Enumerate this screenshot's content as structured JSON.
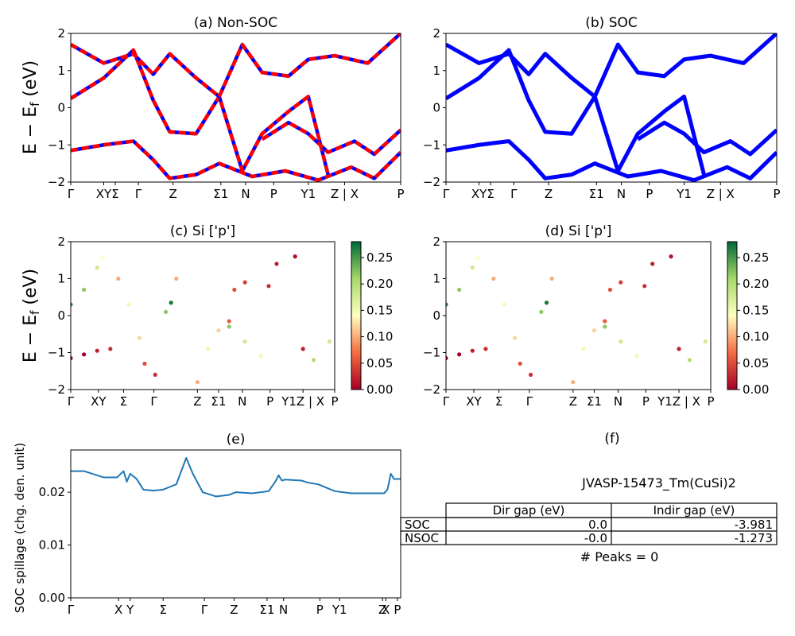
{
  "figure": {
    "ylabel_upper": "E − E",
    "ylabel_sub": "f",
    "ylabel_unit": " (eV)"
  },
  "chart_data": [
    {
      "id": "a",
      "type": "line",
      "title": "(a) Non-SOC",
      "ylim": [
        -2,
        2
      ],
      "yticks": [
        "2",
        "1",
        "0",
        "−1",
        "−2"
      ],
      "xticks": [
        "Γ",
        "XY",
        "Σ",
        "Γ",
        "Z",
        "Σ1",
        "N",
        "P",
        "Y1",
        "Z | X",
        "P"
      ],
      "series": [
        {
          "name": "band1",
          "x": [
            0,
            0.1,
            0.19,
            0.25,
            0.3,
            0.38,
            0.45,
            0.55,
            0.65,
            0.75,
            0.85,
            0.92,
            1.0
          ],
          "y": [
            -1.15,
            -1.0,
            -0.9,
            -1.4,
            -1.9,
            -1.8,
            -1.5,
            -1.85,
            -1.7,
            -1.95,
            -1.6,
            -1.9,
            -1.2
          ]
        },
        {
          "name": "band2",
          "x": [
            0,
            0.1,
            0.19,
            0.25,
            0.3,
            0.38,
            0.45,
            0.52,
            0.58,
            0.66,
            0.72,
            0.78
          ],
          "y": [
            0.25,
            0.8,
            1.55,
            0.2,
            -0.65,
            -0.7,
            0.3,
            -1.7,
            -0.7,
            -0.1,
            0.3,
            -1.8
          ]
        },
        {
          "name": "band3",
          "x": [
            0,
            0.1,
            0.19,
            0.25,
            0.3,
            0.38,
            0.45,
            0.52,
            0.58,
            0.66,
            0.72,
            0.8,
            0.9,
            1.0
          ],
          "y": [
            1.7,
            1.2,
            1.45,
            0.9,
            1.45,
            0.8,
            0.3,
            1.7,
            0.95,
            0.85,
            1.3,
            1.4,
            1.2,
            2.0
          ]
        },
        {
          "name": "band4",
          "x": [
            0.58,
            0.66,
            0.72,
            0.78,
            0.86,
            0.92,
            1.0
          ],
          "y": [
            -0.85,
            -0.4,
            -0.7,
            -1.2,
            -0.9,
            -1.25,
            -0.6
          ]
        }
      ]
    },
    {
      "id": "b",
      "type": "line",
      "title": "(b) SOC",
      "ylim": [
        -2,
        2
      ],
      "yticks": [
        "2",
        "1",
        "0",
        "−1",
        "−2"
      ],
      "xticks": [
        "Γ",
        "XY",
        "Σ",
        "Γ",
        "Z",
        "Σ1",
        "N",
        "P",
        "Y1",
        "Z | X",
        "P"
      ],
      "series": [
        {
          "name": "band1",
          "x": [
            0,
            0.1,
            0.19,
            0.25,
            0.3,
            0.38,
            0.45,
            0.55,
            0.65,
            0.75,
            0.85,
            0.92,
            1.0
          ],
          "y": [
            -1.15,
            -1.0,
            -0.9,
            -1.4,
            -1.9,
            -1.8,
            -1.5,
            -1.85,
            -1.7,
            -1.95,
            -1.6,
            -1.9,
            -1.2
          ]
        },
        {
          "name": "band2",
          "x": [
            0,
            0.1,
            0.19,
            0.25,
            0.3,
            0.38,
            0.45,
            0.52,
            0.58,
            0.66,
            0.72,
            0.78
          ],
          "y": [
            0.25,
            0.8,
            1.55,
            0.2,
            -0.65,
            -0.7,
            0.3,
            -1.7,
            -0.7,
            -0.1,
            0.3,
            -1.8
          ]
        },
        {
          "name": "band3",
          "x": [
            0,
            0.1,
            0.19,
            0.25,
            0.3,
            0.38,
            0.45,
            0.52,
            0.58,
            0.66,
            0.72,
            0.8,
            0.9,
            1.0
          ],
          "y": [
            1.7,
            1.2,
            1.45,
            0.9,
            1.45,
            0.8,
            0.3,
            1.7,
            0.95,
            0.85,
            1.3,
            1.4,
            1.2,
            2.0
          ]
        },
        {
          "name": "band4",
          "x": [
            0.58,
            0.66,
            0.72,
            0.78,
            0.86,
            0.92,
            1.0
          ],
          "y": [
            -0.85,
            -0.4,
            -0.7,
            -1.2,
            -0.9,
            -1.25,
            -0.6
          ]
        }
      ]
    },
    {
      "id": "c",
      "type": "scatter",
      "title": "(c)  Si ['p']",
      "ylim": [
        -2,
        2
      ],
      "yticks": [
        "2",
        "1",
        "0",
        "−1",
        "−2"
      ],
      "xticks": [
        "Γ",
        "XY",
        "Σ",
        "Γ",
        "Z",
        "Σ1",
        "N",
        "P",
        "Y1Z | X",
        "P"
      ],
      "colorbar": {
        "min": 0.0,
        "max": 0.28,
        "ticks": [
          "0.25",
          "0.20",
          "0.15",
          "0.10",
          "0.05",
          "0.00"
        ]
      },
      "points": [
        [
          0.0,
          -1.15,
          0.0
        ],
        [
          0.05,
          -1.05,
          0.0
        ],
        [
          0.1,
          -0.95,
          0.02
        ],
        [
          0.15,
          -0.9,
          0.03
        ],
        [
          0.0,
          0.3,
          0.26
        ],
        [
          0.05,
          0.7,
          0.22
        ],
        [
          0.1,
          1.3,
          0.18
        ],
        [
          0.12,
          1.55,
          0.14
        ],
        [
          0.18,
          1.0,
          0.1
        ],
        [
          0.22,
          0.3,
          0.15
        ],
        [
          0.26,
          -0.6,
          0.12
        ],
        [
          0.28,
          -1.3,
          0.05
        ],
        [
          0.32,
          -1.6,
          0.03
        ],
        [
          0.36,
          0.1,
          0.22
        ],
        [
          0.38,
          0.35,
          0.27
        ],
        [
          0.4,
          1.0,
          0.1
        ],
        [
          0.48,
          -1.8,
          0.1
        ],
        [
          0.52,
          -0.9,
          0.15
        ],
        [
          0.56,
          -0.4,
          0.12
        ],
        [
          0.6,
          -0.15,
          0.06
        ],
        [
          0.62,
          0.7,
          0.05
        ],
        [
          0.66,
          0.9,
          0.04
        ],
        [
          0.6,
          -0.3,
          0.22
        ],
        [
          0.66,
          -0.7,
          0.18
        ],
        [
          0.72,
          -1.1,
          0.15
        ],
        [
          0.75,
          0.8,
          0.03
        ],
        [
          0.78,
          1.4,
          0.02
        ],
        [
          0.85,
          1.6,
          0.01
        ],
        [
          0.88,
          -0.9,
          0.02
        ],
        [
          0.92,
          -1.2,
          0.2
        ],
        [
          0.98,
          -0.7,
          0.18
        ]
      ]
    },
    {
      "id": "d",
      "type": "scatter",
      "title": "(d) Si ['p']",
      "ylim": [
        -2,
        2
      ],
      "yticks": [
        "2",
        "1",
        "0",
        "−1",
        "−2"
      ],
      "xticks": [
        "Γ",
        "XY",
        "Σ",
        "Γ",
        "Z",
        "Σ1",
        "N",
        "P",
        "Y1Z | X",
        "P"
      ],
      "colorbar": {
        "min": 0.0,
        "max": 0.28,
        "ticks": [
          "0.25",
          "0.20",
          "0.15",
          "0.10",
          "0.05",
          "0.00"
        ]
      },
      "points": [
        [
          0.0,
          -1.15,
          0.0
        ],
        [
          0.05,
          -1.05,
          0.0
        ],
        [
          0.1,
          -0.95,
          0.02
        ],
        [
          0.15,
          -0.9,
          0.03
        ],
        [
          0.0,
          0.3,
          0.26
        ],
        [
          0.05,
          0.7,
          0.22
        ],
        [
          0.1,
          1.3,
          0.18
        ],
        [
          0.12,
          1.55,
          0.14
        ],
        [
          0.18,
          1.0,
          0.1
        ],
        [
          0.22,
          0.3,
          0.15
        ],
        [
          0.26,
          -0.6,
          0.12
        ],
        [
          0.28,
          -1.3,
          0.05
        ],
        [
          0.32,
          -1.6,
          0.03
        ],
        [
          0.36,
          0.1,
          0.22
        ],
        [
          0.38,
          0.35,
          0.27
        ],
        [
          0.4,
          1.0,
          0.1
        ],
        [
          0.48,
          -1.8,
          0.1
        ],
        [
          0.52,
          -0.9,
          0.15
        ],
        [
          0.56,
          -0.4,
          0.12
        ],
        [
          0.6,
          -0.15,
          0.06
        ],
        [
          0.62,
          0.7,
          0.05
        ],
        [
          0.66,
          0.9,
          0.04
        ],
        [
          0.6,
          -0.3,
          0.22
        ],
        [
          0.66,
          -0.7,
          0.18
        ],
        [
          0.72,
          -1.1,
          0.15
        ],
        [
          0.75,
          0.8,
          0.03
        ],
        [
          0.78,
          1.4,
          0.02
        ],
        [
          0.85,
          1.6,
          0.01
        ],
        [
          0.88,
          -0.9,
          0.02
        ],
        [
          0.92,
          -1.2,
          0.2
        ],
        [
          0.98,
          -0.7,
          0.18
        ]
      ]
    },
    {
      "id": "e",
      "type": "line",
      "title": "(e)",
      "ylabel": "SOC spillage (chg. den. unit)",
      "ylim": [
        0.0,
        0.028
      ],
      "yticks": [
        "0.02",
        "0.01",
        "0.00"
      ],
      "xticks": [
        "Γ",
        "X",
        "Y",
        "Σ",
        "Γ",
        "Z",
        "Σ1",
        "N",
        "P",
        "Y1",
        "Z",
        "X",
        "P"
      ],
      "series": [
        {
          "name": "spillage",
          "x": [
            0,
            0.04,
            0.1,
            0.14,
            0.16,
            0.17,
            0.18,
            0.2,
            0.22,
            0.25,
            0.28,
            0.3,
            0.32,
            0.35,
            0.37,
            0.4,
            0.44,
            0.48,
            0.5,
            0.55,
            0.6,
            0.62,
            0.63,
            0.64,
            0.65,
            0.7,
            0.72,
            0.75,
            0.8,
            0.85,
            0.9,
            0.93,
            0.95,
            0.96,
            0.97,
            0.98,
            1.0
          ],
          "y": [
            0.024,
            0.024,
            0.0228,
            0.0228,
            0.024,
            0.022,
            0.0235,
            0.0225,
            0.0205,
            0.0203,
            0.0205,
            0.021,
            0.0215,
            0.0265,
            0.0235,
            0.02,
            0.0192,
            0.0195,
            0.02,
            0.0198,
            0.0202,
            0.022,
            0.0232,
            0.0222,
            0.0224,
            0.0222,
            0.0218,
            0.0215,
            0.0202,
            0.0198,
            0.0198,
            0.0198,
            0.0198,
            0.0205,
            0.0235,
            0.0225,
            0.0225
          ]
        }
      ]
    }
  ],
  "panel_f": {
    "title": "(f)",
    "material": "JVASP-15473_Tm(CuSi)2",
    "table": {
      "headers": [
        "Dir gap (eV)",
        "Indir gap (eV)"
      ],
      "rows": [
        {
          "label": "SOC",
          "dir": "0.0",
          "indir": "-3.981"
        },
        {
          "label": "NSOC",
          "dir": "-0.0",
          "indir": "-1.273"
        }
      ]
    },
    "peaks": "# Peaks = 0"
  },
  "colors": {
    "blue": "#0000ff",
    "red": "#ff0000",
    "spillage": "#1f77b4"
  }
}
